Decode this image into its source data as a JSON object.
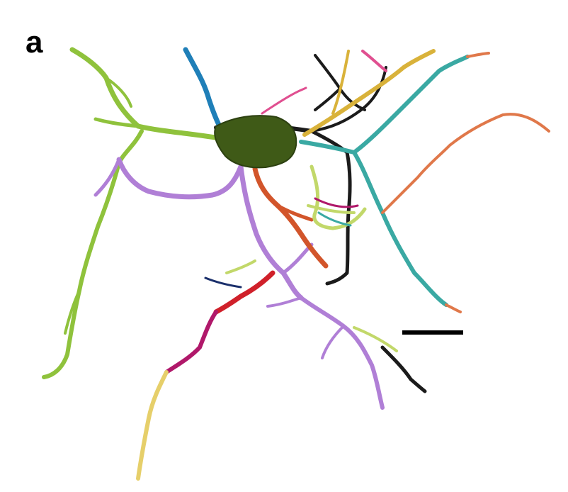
{
  "figure": {
    "panel_label": "a",
    "colors": {
      "soma": "#3f5a17",
      "soma_edge": "#2c4010",
      "lime": "#8fc23c",
      "blue": "#1f7fb8",
      "black": "#1b1b1b",
      "gold": "#d9b23a",
      "teal": "#3aa9a3",
      "orange_red": "#d2552b",
      "salmon": "#e0784a",
      "violet": "#b07fd6",
      "red": "#d0202a",
      "magenta": "#b0186a",
      "pale_yellow": "#e6cf6a",
      "pink": "#e04f90",
      "navy": "#1a2f6b",
      "olive_light": "#c2d86a",
      "scale_bar": "#000000"
    }
  }
}
